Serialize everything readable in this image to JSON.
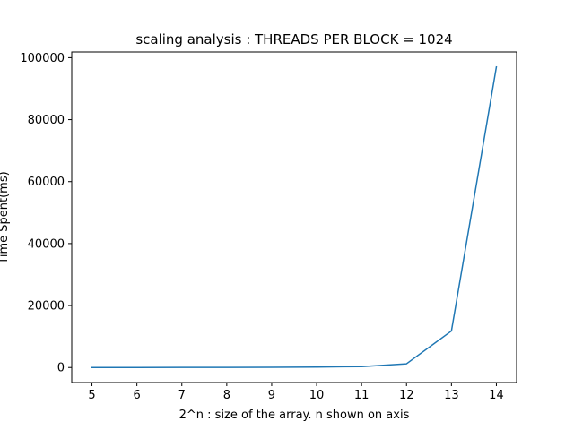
{
  "chart_data": {
    "type": "line",
    "title": "scaling analysis : THREADS PER BLOCK = 1024",
    "xlabel": "2^n : size of the array. n shown on axis",
    "ylabel": "Time Spent(ms)",
    "x": [
      5,
      6,
      7,
      8,
      9,
      10,
      11,
      12,
      13,
      14
    ],
    "series": [
      {
        "values": [
          5,
          10,
          20,
          40,
          80,
          150,
          300,
          1200,
          11800,
          97000
        ]
      }
    ],
    "xlim": [
      4.55,
      14.45
    ],
    "ylim": [
      -4850,
      101850
    ],
    "xticks": [
      5,
      6,
      7,
      8,
      9,
      10,
      11,
      12,
      13,
      14
    ],
    "yticks": [
      0,
      20000,
      40000,
      60000,
      80000,
      100000
    ],
    "grid": false,
    "legend": false,
    "colors": {
      "line": "#1f77b4",
      "axes": "#000000"
    }
  }
}
